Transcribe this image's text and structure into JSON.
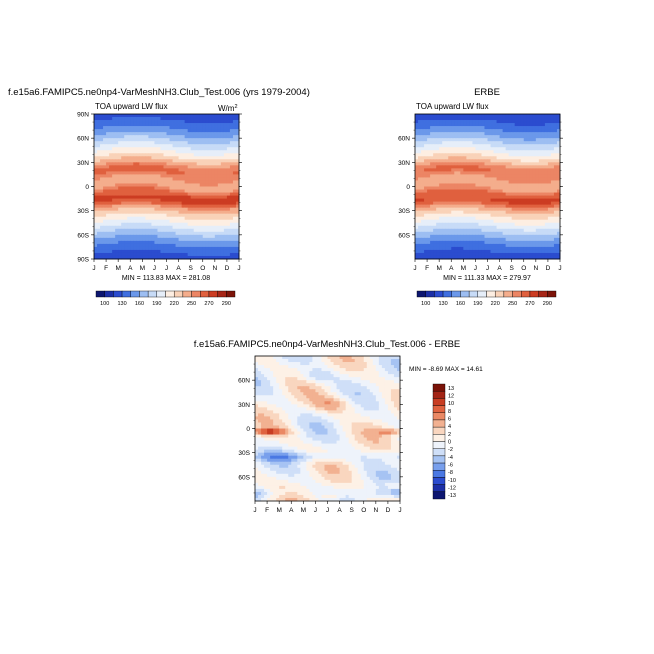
{
  "colors": {
    "scale": [
      "#0d1670",
      "#1c2fa6",
      "#2b4ccf",
      "#3f6fe0",
      "#6b98ea",
      "#9dbef2",
      "#c7dbf7",
      "#e6eef9",
      "#fdeee2",
      "#f9d2b8",
      "#f4ad8c",
      "#ec8564",
      "#e0603e",
      "#cc3c22",
      "#a72516",
      "#7d1409"
    ],
    "diff_scale": [
      "#0d1670",
      "#1c2fa6",
      "#2b4ccf",
      "#4a78e3",
      "#789fec",
      "#a6c3f3",
      "#cfdff8",
      "#eef3fb",
      "#fdf1e6",
      "#f9d6bf",
      "#f2b191",
      "#ea8965",
      "#df623f",
      "#c83d22",
      "#a32415",
      "#7a1208"
    ]
  },
  "chart_data": [
    {
      "type": "heatmap",
      "title": "f.e15a6.FAMIPC5.ne0np4-VarMeshNH3.Club_Test.006 (yrs 1979-2004)",
      "subtitle_left": "TOA upward LW flux",
      "units": "W/m",
      "units_sup": "2",
      "stats": "MIN = 113.83 MAX = 281.08",
      "x_ticks": [
        "J",
        "F",
        "M",
        "A",
        "M",
        "J",
        "J",
        "A",
        "S",
        "O",
        "N",
        "D",
        "J"
      ],
      "y_ticks": [
        "90N",
        "60N",
        "30N",
        "0",
        "30S",
        "60S",
        "90S"
      ],
      "y_tick_lat": [
        90,
        60,
        30,
        0,
        -30,
        -60,
        -90
      ],
      "ylim": [
        -90,
        90
      ],
      "colorbar_labels": [
        "100",
        "130",
        "160",
        "190",
        "220",
        "250",
        "270",
        "290"
      ]
    },
    {
      "type": "heatmap",
      "title": "ERBE",
      "subtitle_left": "TOA upward LW flux",
      "stats": "MIN = 111.33 MAX = 279.97",
      "x_ticks": [
        "J",
        "F",
        "M",
        "A",
        "M",
        "J",
        "J",
        "A",
        "S",
        "O",
        "N",
        "D",
        "J"
      ],
      "y_ticks": [
        "60N",
        "30N",
        "0",
        "30S",
        "60S"
      ],
      "y_tick_lat": [
        60,
        30,
        0,
        -30,
        -60
      ],
      "ylim": [
        -90,
        90
      ],
      "colorbar_labels": [
        "100",
        "130",
        "160",
        "190",
        "220",
        "250",
        "270",
        "290"
      ]
    },
    {
      "type": "heatmap",
      "title": "f.e15a6.FAMIPC5.ne0np4-VarMeshNH3.Club_Test.006 - ERBE",
      "stats": "MIN =  -8.69 MAX =  14.61",
      "x_ticks": [
        "J",
        "F",
        "M",
        "A",
        "M",
        "J",
        "J",
        "A",
        "S",
        "O",
        "N",
        "D",
        "J"
      ],
      "y_ticks": [
        "60N",
        "30N",
        "0",
        "30S",
        "60S"
      ],
      "y_tick_lat": [
        60,
        30,
        0,
        -30,
        -60
      ],
      "ylim": [
        -90,
        90
      ],
      "colorbar_labels": [
        "13",
        "12",
        "10",
        "8",
        "6",
        "4",
        "2",
        "0",
        "-2",
        "-4",
        "-6",
        "-8",
        "-10",
        "-12",
        "-13"
      ]
    }
  ]
}
